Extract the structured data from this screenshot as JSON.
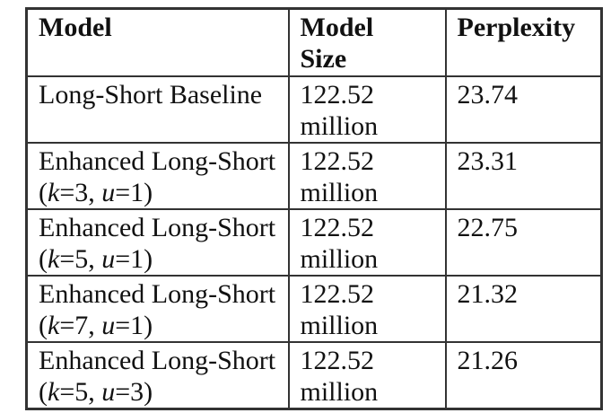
{
  "colors": {
    "background": "#ffffff",
    "border": "#333333",
    "text": "#111111"
  },
  "table": {
    "headers": [
      {
        "lines": [
          "Model"
        ]
      },
      {
        "lines": [
          "Model",
          "Size"
        ]
      },
      {
        "lines": [
          "Perplexity"
        ]
      }
    ],
    "rows": [
      {
        "model_name": "Long-Short Baseline",
        "model_params": [],
        "size_lines": [
          "122.52",
          "million"
        ],
        "perplexity": "23.74"
      },
      {
        "model_name": "Enhanced Long-Short",
        "model_params": [
          {
            "text": "(",
            "italic": false
          },
          {
            "text": "k",
            "italic": true
          },
          {
            "text": "=3, ",
            "italic": false
          },
          {
            "text": "u",
            "italic": true
          },
          {
            "text": "=1)",
            "italic": false
          }
        ],
        "size_lines": [
          "122.52",
          "million"
        ],
        "perplexity": "23.31"
      },
      {
        "model_name": "Enhanced Long-Short",
        "model_params": [
          {
            "text": "(",
            "italic": false
          },
          {
            "text": "k",
            "italic": true
          },
          {
            "text": "=5, ",
            "italic": false
          },
          {
            "text": "u",
            "italic": true
          },
          {
            "text": "=1)",
            "italic": false
          }
        ],
        "size_lines": [
          "122.52",
          "million"
        ],
        "perplexity": "22.75"
      },
      {
        "model_name": "Enhanced Long-Short",
        "model_params": [
          {
            "text": "(",
            "italic": false
          },
          {
            "text": "k",
            "italic": true
          },
          {
            "text": "=7, ",
            "italic": false
          },
          {
            "text": "u",
            "italic": true
          },
          {
            "text": "=1)",
            "italic": false
          }
        ],
        "size_lines": [
          "122.52",
          "million"
        ],
        "perplexity": "21.32"
      },
      {
        "model_name": "Enhanced Long-Short",
        "model_params": [
          {
            "text": "(",
            "italic": false
          },
          {
            "text": "k",
            "italic": true
          },
          {
            "text": "=5, ",
            "italic": false
          },
          {
            "text": "u",
            "italic": true
          },
          {
            "text": "=3)",
            "italic": false
          }
        ],
        "size_lines": [
          "122.52",
          "million"
        ],
        "perplexity": "21.26"
      }
    ]
  }
}
